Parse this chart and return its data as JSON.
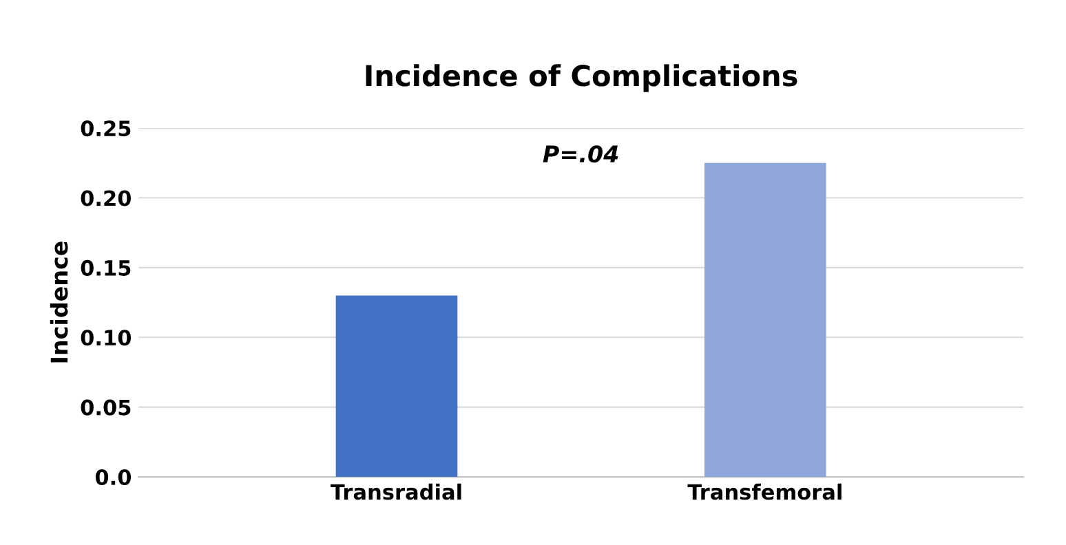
{
  "chart_data": {
    "type": "bar",
    "title": "Incidence of Complications",
    "ylabel": "Incidence",
    "categories": [
      "Transradial",
      "Transfemoral"
    ],
    "values": [
      0.13,
      0.225
    ],
    "colors": [
      "#4472c4",
      "#8ea6da"
    ],
    "ylim": [
      0,
      0.25
    ],
    "yticks": [
      {
        "value": 0,
        "label": "0.0"
      },
      0.05,
      {
        "value": 0.1,
        "label": "0.10"
      },
      0.15,
      {
        "value": 0.2,
        "label": "0.20"
      },
      0.25
    ],
    "grid": "y",
    "annotations": [
      "P=.04"
    ]
  }
}
